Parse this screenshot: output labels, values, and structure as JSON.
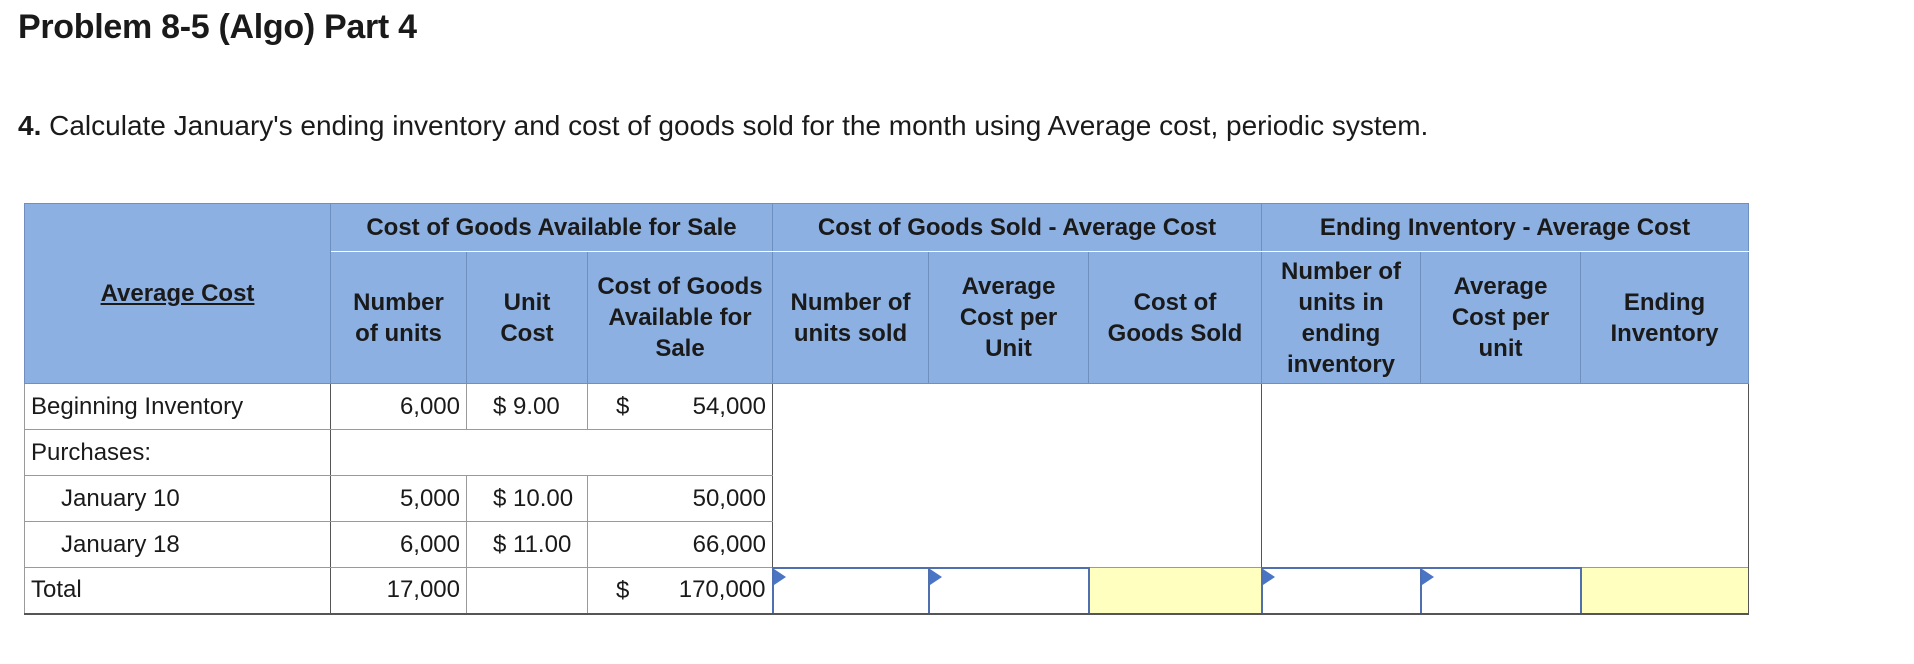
{
  "page": {
    "title": "Problem 8-5 (Algo) Part 4",
    "question_number": "4.",
    "question_text": "Calculate January's ending inventory and cost of goods sold for the month using Average cost, periodic system."
  },
  "table": {
    "corner_header": "Average Cost",
    "group_headers": {
      "available": "Cost of Goods Available for Sale",
      "cogs": "Cost of Goods Sold - Average Cost",
      "ending": "Ending Inventory - Average Cost"
    },
    "sub_headers": {
      "num_units": "Number of units",
      "unit_cost": "Unit Cost",
      "cost_available": "Cost of Goods Available for Sale",
      "units_sold": "Number of units sold",
      "avg_cost_unit": "Average Cost per Unit",
      "cogs": "Cost of Goods Sold",
      "units_ending": "Number of units in ending inventory",
      "avg_cost_unit_ending": "Average Cost per unit",
      "ending_inventory": "Ending Inventory"
    },
    "rows": {
      "beginning": {
        "label": "Beginning Inventory",
        "units": "6,000",
        "unit_cost": "$ 9.00",
        "dollar": "$",
        "cost": "54,000"
      },
      "purchases": {
        "label": "Purchases:"
      },
      "jan10": {
        "label": "January 10",
        "units": "5,000",
        "unit_cost": "$ 10.00",
        "cost": "50,000"
      },
      "jan18": {
        "label": "January 18",
        "units": "6,000",
        "unit_cost": "$ 11.00",
        "cost": "66,000"
      },
      "total": {
        "label": "Total",
        "units": "17,000",
        "dollar": "$",
        "cost": "170,000"
      }
    },
    "total_inputs": {
      "units_sold": "",
      "avg_cost_unit": "",
      "units_ending": "",
      "avg_cost_unit_ending": ""
    },
    "colors": {
      "header_bg": "#8db0e2",
      "input_border": "#4f6fae",
      "computed_bg": "#ffffc0"
    }
  }
}
